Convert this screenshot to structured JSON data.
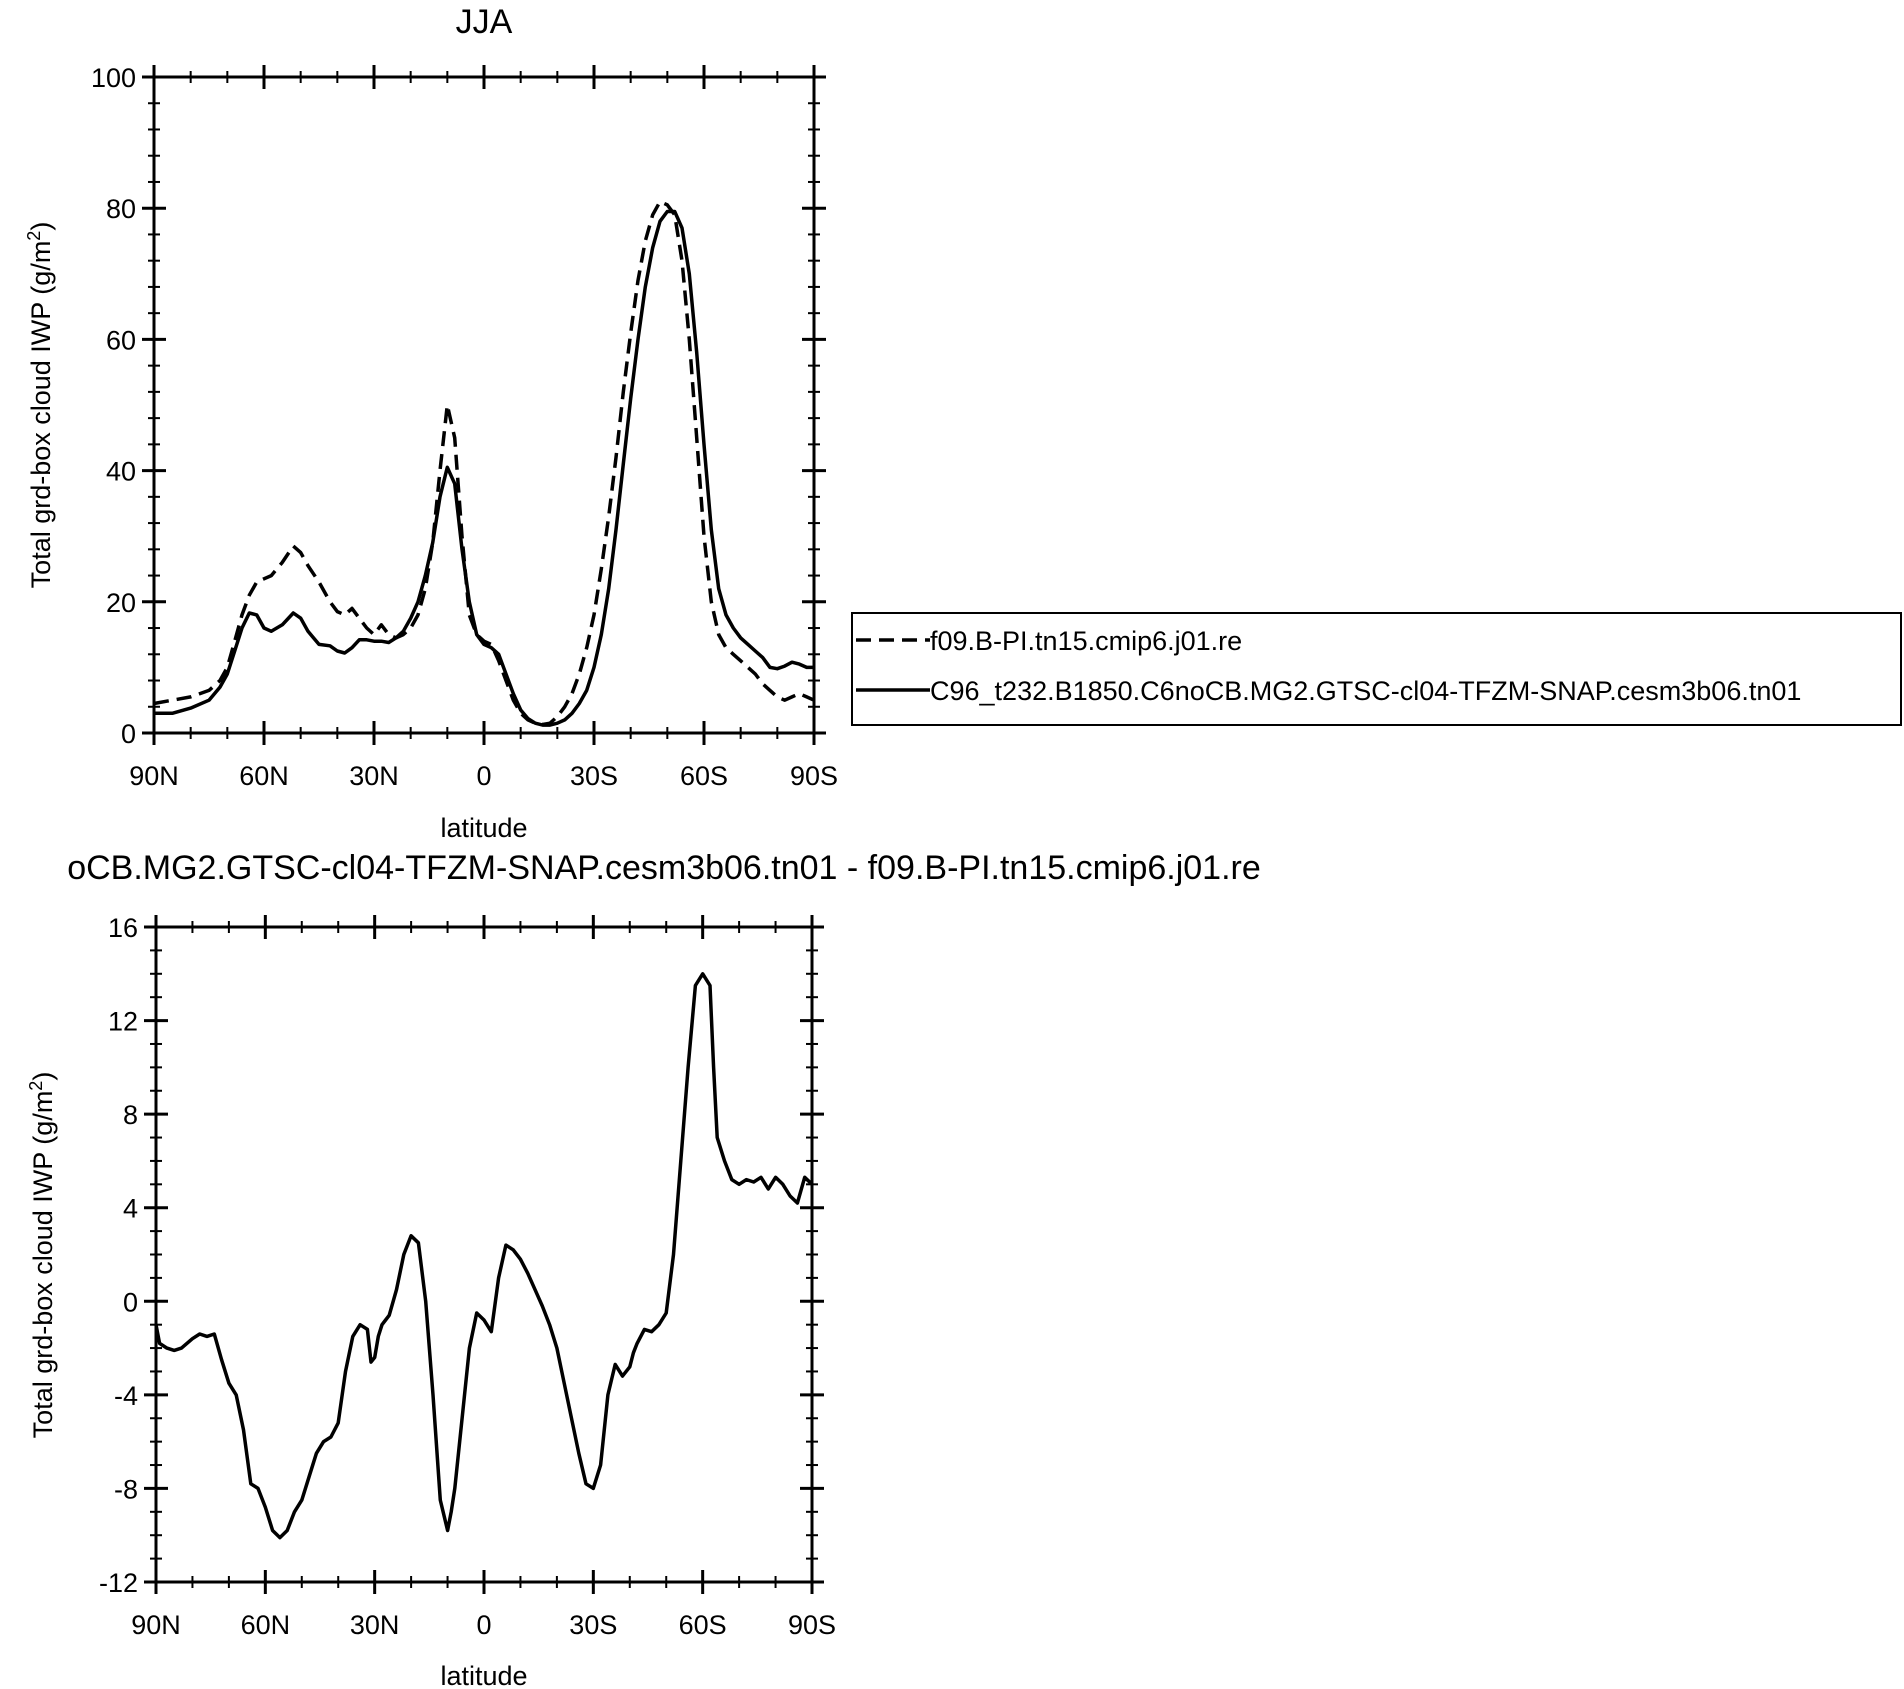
{
  "chart_data": [
    {
      "type": "line",
      "title": "JJA",
      "xlabel": "latitude",
      "ylabel": "Total grd-box cloud IWP (g/m",
      "ylabel_sup": "2",
      "ylabel_end": ")",
      "x_tick_labels": [
        "90N",
        "60N",
        "30N",
        "0",
        "30S",
        "60S",
        "90S"
      ],
      "x_tick_values": [
        -90,
        -60,
        -30,
        0,
        30,
        60,
        90
      ],
      "xlim": [
        -90,
        90
      ],
      "ylim": [
        0,
        100
      ],
      "y_ticks": [
        0,
        20,
        40,
        60,
        80,
        100
      ],
      "y_tick_labels": [
        "0",
        "20",
        "40",
        "60",
        "80",
        "100"
      ],
      "legend_position": "right",
      "series": [
        {
          "name": "f09.B-PI.tn15.cmip6.j01.re",
          "style": "dashed",
          "x": [
            -90,
            -85,
            -80,
            -75,
            -72,
            -70,
            -68,
            -66,
            -64,
            -62,
            -60,
            -58,
            -55,
            -52,
            -50,
            -48,
            -45,
            -42,
            -40,
            -38,
            -36,
            -34,
            -32,
            -30,
            -28,
            -26,
            -24,
            -22,
            -20,
            -18,
            -16,
            -14,
            -12,
            -10,
            -8,
            -6,
            -4,
            -2,
            0,
            2,
            4,
            6,
            8,
            10,
            12,
            14,
            16,
            18,
            20,
            22,
            24,
            26,
            28,
            30,
            32,
            34,
            36,
            38,
            40,
            42,
            44,
            46,
            48,
            50,
            52,
            54,
            56,
            58,
            60,
            62,
            64,
            66,
            68,
            70,
            72,
            74,
            76,
            78,
            80,
            82,
            84,
            86,
            88,
            90
          ],
          "y": [
            4.5,
            5,
            5.5,
            6.5,
            8,
            10,
            14,
            18,
            21,
            23,
            23.5,
            24,
            26,
            28.5,
            27.5,
            25.5,
            23,
            20,
            18.5,
            18,
            19,
            17.5,
            16,
            15,
            16.5,
            15,
            14.5,
            15,
            16,
            18,
            22,
            29,
            40,
            50,
            45,
            30,
            18,
            15,
            14,
            13.5,
            11,
            8,
            5,
            3,
            2,
            1.5,
            1.3,
            1.5,
            2.5,
            4,
            6,
            9,
            13,
            18,
            25,
            33,
            42,
            52,
            61,
            69,
            75,
            79,
            81,
            80.5,
            79,
            72,
            60,
            45,
            30,
            20,
            15,
            13,
            12,
            11,
            10,
            9,
            7.5,
            6.5,
            5.5,
            5,
            5.5,
            6,
            5.5,
            5
          ]
        },
        {
          "name": "C96_t232.B1850.C6noCB.MG2.GTSC-cl04-TFZM-SNAP.cesm3b06.tn01",
          "style": "solid",
          "x": [
            -90,
            -85,
            -80,
            -75,
            -72,
            -70,
            -68,
            -66,
            -64,
            -62,
            -60,
            -58,
            -55,
            -52,
            -50,
            -48,
            -45,
            -42,
            -40,
            -38,
            -36,
            -34,
            -32,
            -30,
            -28,
            -26,
            -24,
            -22,
            -20,
            -18,
            -16,
            -14,
            -12,
            -10,
            -8,
            -6,
            -4,
            -2,
            0,
            2,
            4,
            6,
            8,
            10,
            12,
            14,
            16,
            18,
            20,
            22,
            24,
            26,
            28,
            30,
            32,
            34,
            36,
            38,
            40,
            42,
            44,
            46,
            48,
            50,
            52,
            54,
            56,
            58,
            60,
            62,
            64,
            66,
            68,
            70,
            72,
            74,
            76,
            78,
            80,
            82,
            84,
            86,
            88,
            90
          ],
          "y": [
            3,
            3,
            3.8,
            5,
            7,
            9,
            12.5,
            16,
            18.3,
            18,
            16,
            15.5,
            16.5,
            18.3,
            17.5,
            15.5,
            13.5,
            13.3,
            12.5,
            12.2,
            13,
            14.2,
            14.2,
            14,
            14,
            13.8,
            14.5,
            15.5,
            17.5,
            20,
            24,
            29,
            36,
            40.5,
            38,
            28,
            20,
            15,
            13.5,
            13,
            12,
            9,
            6,
            3.5,
            2.2,
            1.5,
            1.2,
            1.2,
            1.5,
            2,
            3,
            4.5,
            6.5,
            10,
            15,
            22,
            31,
            41,
            51,
            60,
            68,
            74,
            78,
            79.5,
            79.5,
            77,
            70,
            58,
            44,
            31,
            22,
            18,
            16,
            14.5,
            13.5,
            12.5,
            11.5,
            10,
            9.8,
            10.2,
            10.8,
            10.5,
            10,
            10
          ]
        }
      ]
    },
    {
      "type": "line",
      "title": "oCB.MG2.GTSC-cl04-TFZM-SNAP.cesm3b06.tn01 - f09.B-PI.tn15.cmip6.j01.re",
      "xlabel": "latitude",
      "ylabel": "Total grd-box cloud IWP (g/m",
      "ylabel_sup": "2",
      "ylabel_end": ")",
      "x_tick_labels": [
        "90N",
        "60N",
        "30N",
        "0",
        "30S",
        "60S",
        "90S"
      ],
      "x_tick_values": [
        -90,
        -60,
        -30,
        0,
        30,
        60,
        90
      ],
      "xlim": [
        -90,
        90
      ],
      "ylim": [
        -12,
        16
      ],
      "y_ticks": [
        -12,
        -8,
        -4,
        0,
        4,
        8,
        12,
        16
      ],
      "y_tick_labels": [
        "-12",
        "-8",
        "-4",
        "0",
        "4",
        "8",
        "12",
        "16"
      ],
      "series": [
        {
          "style": "solid",
          "x": [
            -90,
            -89,
            -87,
            -85,
            -83,
            -80,
            -78,
            -76,
            -74,
            -72,
            -70,
            -68,
            -66,
            -64,
            -62,
            -60,
            -58,
            -56,
            -54,
            -52,
            -50,
            -48,
            -46,
            -44,
            -42,
            -40,
            -38,
            -36,
            -34,
            -32,
            -31,
            -30,
            -29,
            -28,
            -27,
            -26,
            -24,
            -22,
            -20,
            -18,
            -16,
            -14,
            -12,
            -10,
            -9,
            -8,
            -6,
            -4,
            -2,
            0,
            2,
            4,
            6,
            8,
            10,
            12,
            14,
            16,
            18,
            20,
            22,
            24,
            26,
            28,
            30,
            32,
            34,
            36,
            38,
            40,
            41,
            42,
            44,
            46,
            48,
            50,
            52,
            54,
            56,
            58,
            60,
            62,
            63,
            64,
            66,
            68,
            70,
            72,
            74,
            76,
            78,
            80,
            82,
            84,
            86,
            88,
            90
          ],
          "y": [
            -1,
            -1.8,
            -2,
            -2.1,
            -2,
            -1.6,
            -1.4,
            -1.5,
            -1.4,
            -2.5,
            -3.5,
            -4,
            -5.5,
            -7.8,
            -8,
            -8.8,
            -9.8,
            -10.1,
            -9.8,
            -9,
            -8.5,
            -7.5,
            -6.5,
            -6,
            -5.8,
            -5.2,
            -3,
            -1.5,
            -1,
            -1.2,
            -2.6,
            -2.4,
            -1.5,
            -1,
            -0.8,
            -0.6,
            0.5,
            2,
            2.8,
            2.5,
            0,
            -4,
            -8.5,
            -9.8,
            -9,
            -8,
            -5,
            -2,
            -0.5,
            -0.8,
            -1.3,
            1,
            2.4,
            2.2,
            1.8,
            1.2,
            0.5,
            -0.2,
            -1,
            -2,
            -3.5,
            -5,
            -6.5,
            -7.8,
            -8,
            -7,
            -4,
            -2.7,
            -3.2,
            -2.8,
            -2.2,
            -1.8,
            -1.2,
            -1.3,
            -1,
            -0.5,
            2,
            6,
            10,
            13.5,
            14,
            13.5,
            10,
            7,
            6,
            5.2,
            5,
            5.2,
            5.1,
            5.3,
            4.8,
            5.3,
            5,
            4.5,
            4.2,
            5.3,
            5
          ]
        }
      ]
    }
  ]
}
